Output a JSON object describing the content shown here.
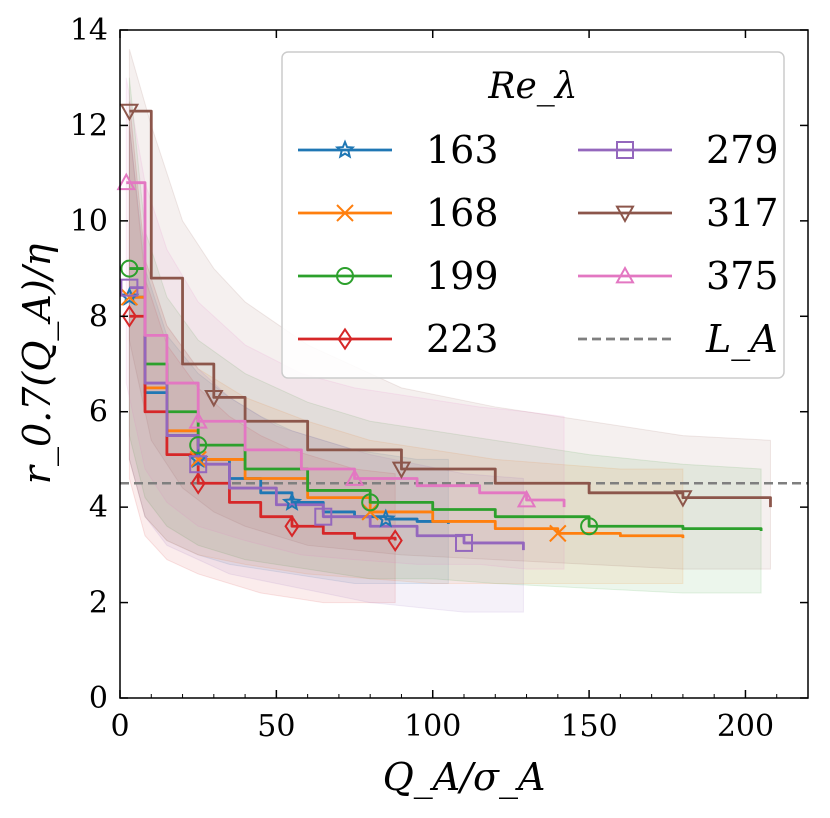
{
  "chart_data": {
    "type": "line",
    "xlabel": "Q_A/σ_A",
    "ylabel": "r_0.7(Q_A)/η",
    "xlim": [
      0,
      220
    ],
    "ylim": [
      0,
      14
    ],
    "xticks": [
      "0",
      "50",
      "100",
      "150",
      "200"
    ],
    "yticks": [
      "0",
      "2",
      "4",
      "6",
      "8",
      "10",
      "12",
      "14"
    ],
    "legend_title": "Re_λ",
    "legend_position": "top-right",
    "grid": false,
    "reference_line": {
      "name": "L_A",
      "y": 4.5,
      "color": "#7f7f7f",
      "style": "dashed"
    },
    "series": [
      {
        "name": "163",
        "color": "#1f77b4",
        "marker": "star",
        "x": [
          3,
          8,
          15,
          25,
          35,
          45,
          55,
          65,
          75,
          85,
          95,
          105
        ],
        "y": [
          8.4,
          6.4,
          5.5,
          5.0,
          4.6,
          4.3,
          4.1,
          3.9,
          3.8,
          3.75,
          3.7,
          3.65
        ],
        "band_low": [
          5.0,
          3.8,
          3.3,
          3.0,
          2.8,
          2.7,
          2.6,
          2.5,
          2.4,
          2.4,
          2.4,
          2.4
        ],
        "band_high": [
          12.0,
          9.0,
          7.6,
          6.8,
          6.3,
          5.9,
          5.6,
          5.4,
          5.2,
          5.1,
          5.0,
          5.0
        ]
      },
      {
        "name": "168",
        "color": "#ff7f0e",
        "marker": "x",
        "x": [
          3,
          8,
          15,
          25,
          40,
          60,
          80,
          100,
          120,
          140,
          160,
          180
        ],
        "y": [
          8.4,
          6.5,
          5.6,
          5.0,
          4.6,
          4.2,
          3.9,
          3.7,
          3.55,
          3.45,
          3.4,
          3.35
        ],
        "band_low": [
          5.0,
          3.8,
          3.3,
          3.0,
          2.8,
          2.6,
          2.5,
          2.4,
          2.4,
          2.4,
          2.4,
          2.4
        ],
        "band_high": [
          12.5,
          9.2,
          7.8,
          6.9,
          6.3,
          5.8,
          5.4,
          5.2,
          5.0,
          4.9,
          4.8,
          4.8
        ]
      },
      {
        "name": "199",
        "color": "#2ca02c",
        "marker": "circle",
        "x": [
          3,
          8,
          15,
          25,
          40,
          60,
          80,
          100,
          120,
          150,
          180,
          205
        ],
        "y": [
          9.0,
          7.0,
          6.0,
          5.3,
          4.8,
          4.35,
          4.1,
          3.95,
          3.8,
          3.6,
          3.55,
          3.5
        ],
        "band_low": [
          5.5,
          4.2,
          3.6,
          3.2,
          2.9,
          2.7,
          2.5,
          2.5,
          2.4,
          2.3,
          2.2,
          2.2
        ],
        "band_high": [
          13.0,
          9.8,
          8.4,
          7.5,
          6.8,
          6.2,
          5.8,
          5.6,
          5.4,
          5.1,
          4.9,
          4.8
        ]
      },
      {
        "name": "223",
        "color": "#d62728",
        "marker": "diamond",
        "x": [
          3,
          8,
          15,
          25,
          35,
          45,
          55,
          65,
          75,
          88
        ],
        "y": [
          8.0,
          6.0,
          5.1,
          4.5,
          4.1,
          3.8,
          3.6,
          3.45,
          3.35,
          3.3
        ],
        "band_low": [
          4.6,
          3.4,
          2.9,
          2.6,
          2.4,
          2.2,
          2.1,
          2.0,
          2.0,
          2.0
        ],
        "band_high": [
          12.0,
          8.8,
          7.4,
          6.5,
          5.9,
          5.5,
          5.2,
          5.0,
          4.8,
          4.7
        ]
      },
      {
        "name": "279",
        "color": "#9467bd",
        "marker": "square",
        "x": [
          3,
          8,
          15,
          25,
          35,
          50,
          65,
          80,
          95,
          110,
          129
        ],
        "y": [
          8.6,
          6.6,
          5.5,
          4.9,
          4.4,
          4.05,
          3.8,
          3.6,
          3.4,
          3.25,
          3.1
        ],
        "band_low": [
          5.0,
          3.8,
          3.2,
          2.9,
          2.6,
          2.4,
          2.2,
          2.0,
          1.9,
          1.8,
          1.8
        ],
        "band_high": [
          12.5,
          9.2,
          7.8,
          6.9,
          6.3,
          5.7,
          5.4,
          5.1,
          4.9,
          4.7,
          4.6
        ]
      },
      {
        "name": "317",
        "color": "#8c564b",
        "marker": "triangle-down",
        "x": [
          3,
          10,
          20,
          30,
          40,
          60,
          90,
          120,
          150,
          180,
          208
        ],
        "y": [
          12.3,
          8.8,
          7.0,
          6.3,
          5.8,
          5.2,
          4.8,
          4.5,
          4.3,
          4.2,
          4.0
        ],
        "band_low": [
          7.5,
          5.4,
          4.4,
          3.9,
          3.6,
          3.2,
          3.0,
          2.9,
          2.8,
          2.7,
          2.7
        ],
        "band_high": [
          13.6,
          12.0,
          10.0,
          9.0,
          8.3,
          7.4,
          6.5,
          6.1,
          5.8,
          5.5,
          5.4
        ]
      },
      {
        "name": "375",
        "color": "#e377c2",
        "marker": "triangle-up",
        "x": [
          2,
          8,
          15,
          25,
          40,
          58,
          75,
          95,
          115,
          130,
          142
        ],
        "y": [
          10.8,
          7.6,
          6.6,
          5.8,
          5.2,
          4.8,
          4.6,
          4.45,
          4.3,
          4.15,
          4.0
        ],
        "band_low": [
          6.6,
          4.8,
          4.1,
          3.6,
          3.3,
          3.0,
          2.9,
          2.8,
          2.8,
          2.7,
          2.7
        ],
        "band_high": [
          13.0,
          10.8,
          9.4,
          8.3,
          7.4,
          6.8,
          6.5,
          6.3,
          6.1,
          6.0,
          5.9
        ]
      }
    ]
  }
}
